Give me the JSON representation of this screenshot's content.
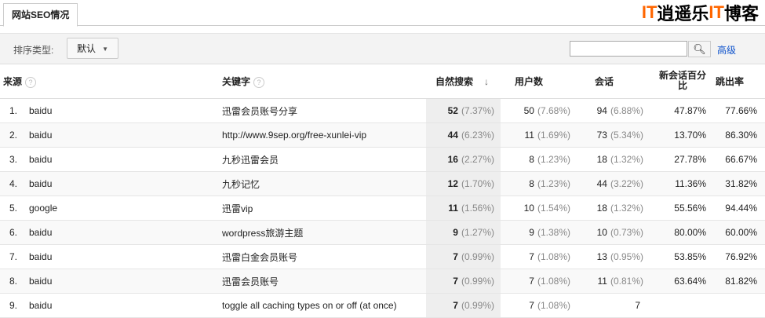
{
  "tab": "网站SEO情况",
  "toolbar": {
    "sort_label": "排序类型:",
    "sort_value": "默认",
    "search_placeholder": "",
    "advanced": "高级"
  },
  "columns": {
    "source": "来源",
    "keyword": "关键字",
    "organic": "自然搜索",
    "users": "用户数",
    "sessions": "会话",
    "new_pct": "新会话百分比",
    "bounce": "跳出率"
  },
  "rows": [
    {
      "n": "1.",
      "source": "baidu",
      "keyword": "迅雷会员账号分享",
      "organic": "52",
      "organic_pct": "(7.37%)",
      "users": "50",
      "users_pct": "(7.68%)",
      "sessions": "94",
      "sessions_pct": "(6.88%)",
      "new_pct": "47.87%",
      "bounce": "77.66%"
    },
    {
      "n": "2.",
      "source": "baidu",
      "keyword": "http://www.9sep.org/free-xunlei-vip",
      "organic": "44",
      "organic_pct": "(6.23%)",
      "users": "11",
      "users_pct": "(1.69%)",
      "sessions": "73",
      "sessions_pct": "(5.34%)",
      "new_pct": "13.70%",
      "bounce": "86.30%"
    },
    {
      "n": "3.",
      "source": "baidu",
      "keyword": "九秒迅雷会员",
      "organic": "16",
      "organic_pct": "(2.27%)",
      "users": "8",
      "users_pct": "(1.23%)",
      "sessions": "18",
      "sessions_pct": "(1.32%)",
      "new_pct": "27.78%",
      "bounce": "66.67%"
    },
    {
      "n": "4.",
      "source": "baidu",
      "keyword": "九秒记忆",
      "organic": "12",
      "organic_pct": "(1.70%)",
      "users": "8",
      "users_pct": "(1.23%)",
      "sessions": "44",
      "sessions_pct": "(3.22%)",
      "new_pct": "11.36%",
      "bounce": "31.82%"
    },
    {
      "n": "5.",
      "source": "google",
      "keyword": "迅雷vip",
      "organic": "11",
      "organic_pct": "(1.56%)",
      "users": "10",
      "users_pct": "(1.54%)",
      "sessions": "18",
      "sessions_pct": "(1.32%)",
      "new_pct": "55.56%",
      "bounce": "94.44%"
    },
    {
      "n": "6.",
      "source": "baidu",
      "keyword": "wordpress旅游主题",
      "organic": "9",
      "organic_pct": "(1.27%)",
      "users": "9",
      "users_pct": "(1.38%)",
      "sessions": "10",
      "sessions_pct": "(0.73%)",
      "new_pct": "80.00%",
      "bounce": "60.00%"
    },
    {
      "n": "7.",
      "source": "baidu",
      "keyword": "迅雷白金会员账号",
      "organic": "7",
      "organic_pct": "(0.99%)",
      "users": "7",
      "users_pct": "(1.08%)",
      "sessions": "13",
      "sessions_pct": "(0.95%)",
      "new_pct": "53.85%",
      "bounce": "76.92%"
    },
    {
      "n": "8.",
      "source": "baidu",
      "keyword": "迅雷会员账号",
      "organic": "7",
      "organic_pct": "(0.99%)",
      "users": "7",
      "users_pct": "(1.08%)",
      "sessions": "11",
      "sessions_pct": "(0.81%)",
      "new_pct": "63.64%",
      "bounce": "81.82%"
    },
    {
      "n": "9.",
      "source": "baidu",
      "keyword": "toggle all caching types on or off (at once)",
      "organic": "7",
      "organic_pct": "(0.99%)",
      "users": "7",
      "users_pct": "(1.08%)",
      "sessions": "7",
      "sessions_pct": "",
      "new_pct": "",
      "bounce": ""
    }
  ],
  "watermark": "IT逍遥乐IT博客"
}
